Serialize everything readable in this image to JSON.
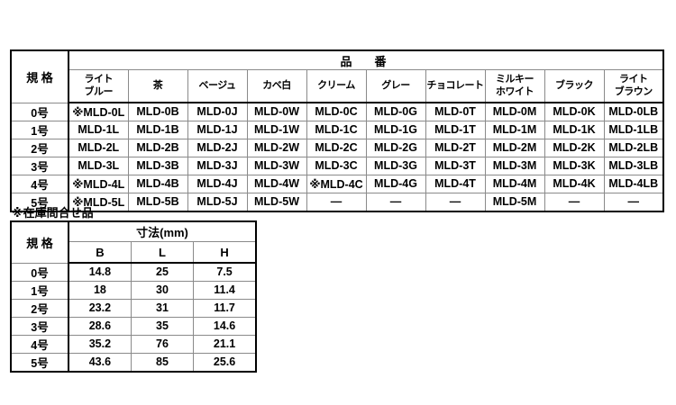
{
  "part_table": {
    "spec_header": "規 格",
    "group_header": "品　番",
    "columns": [
      "ライト\nブルー",
      "茶",
      "ベージュ",
      "カベ白",
      "クリーム",
      "グレー",
      "チョコレート",
      "ミルキー\nホワイト",
      "ブラック",
      "ライト\nブラウン"
    ],
    "rows": [
      {
        "spec": "0号",
        "cells": [
          "※MLD-0L",
          "MLD-0B",
          "MLD-0J",
          "MLD-0W",
          "MLD-0C",
          "MLD-0G",
          "MLD-0T",
          "MLD-0M",
          "MLD-0K",
          "MLD-0LB"
        ]
      },
      {
        "spec": "1号",
        "cells": [
          "MLD-1L",
          "MLD-1B",
          "MLD-1J",
          "MLD-1W",
          "MLD-1C",
          "MLD-1G",
          "MLD-1T",
          "MLD-1M",
          "MLD-1K",
          "MLD-1LB"
        ]
      },
      {
        "spec": "2号",
        "cells": [
          "MLD-2L",
          "MLD-2B",
          "MLD-2J",
          "MLD-2W",
          "MLD-2C",
          "MLD-2G",
          "MLD-2T",
          "MLD-2M",
          "MLD-2K",
          "MLD-2LB"
        ]
      },
      {
        "spec": "3号",
        "cells": [
          "MLD-3L",
          "MLD-3B",
          "MLD-3J",
          "MLD-3W",
          "MLD-3C",
          "MLD-3G",
          "MLD-3T",
          "MLD-3M",
          "MLD-3K",
          "MLD-3LB"
        ]
      },
      {
        "spec": "4号",
        "cells": [
          "※MLD-4L",
          "MLD-4B",
          "MLD-4J",
          "MLD-4W",
          "※MLD-4C",
          "MLD-4G",
          "MLD-4T",
          "MLD-4M",
          "MLD-4K",
          "MLD-4LB"
        ]
      },
      {
        "spec": "5号",
        "cells": [
          "※MLD-5L",
          "MLD-5B",
          "MLD-5J",
          "MLD-5W",
          "—",
          "—",
          "—",
          "MLD-5M",
          "—",
          "—"
        ]
      }
    ]
  },
  "note": "※在庫問合せ品",
  "dimension_table": {
    "spec_header": "規 格",
    "group_header": "寸法(mm)",
    "columns": [
      "B",
      "L",
      "H"
    ],
    "rows": [
      {
        "spec": "0号",
        "cells": [
          "14.8",
          "25",
          "7.5"
        ]
      },
      {
        "spec": "1号",
        "cells": [
          "18",
          "30",
          "11.4"
        ]
      },
      {
        "spec": "2号",
        "cells": [
          "23.2",
          "31",
          "11.7"
        ]
      },
      {
        "spec": "3号",
        "cells": [
          "28.6",
          "35",
          "14.6"
        ]
      },
      {
        "spec": "4号",
        "cells": [
          "35.2",
          "76",
          "21.1"
        ]
      },
      {
        "spec": "5号",
        "cells": [
          "43.6",
          "85",
          "25.6"
        ]
      }
    ]
  },
  "colors": {
    "text": "#000000",
    "grid_line": "#8a8a8a",
    "border": "#000000",
    "background": "#ffffff"
  }
}
